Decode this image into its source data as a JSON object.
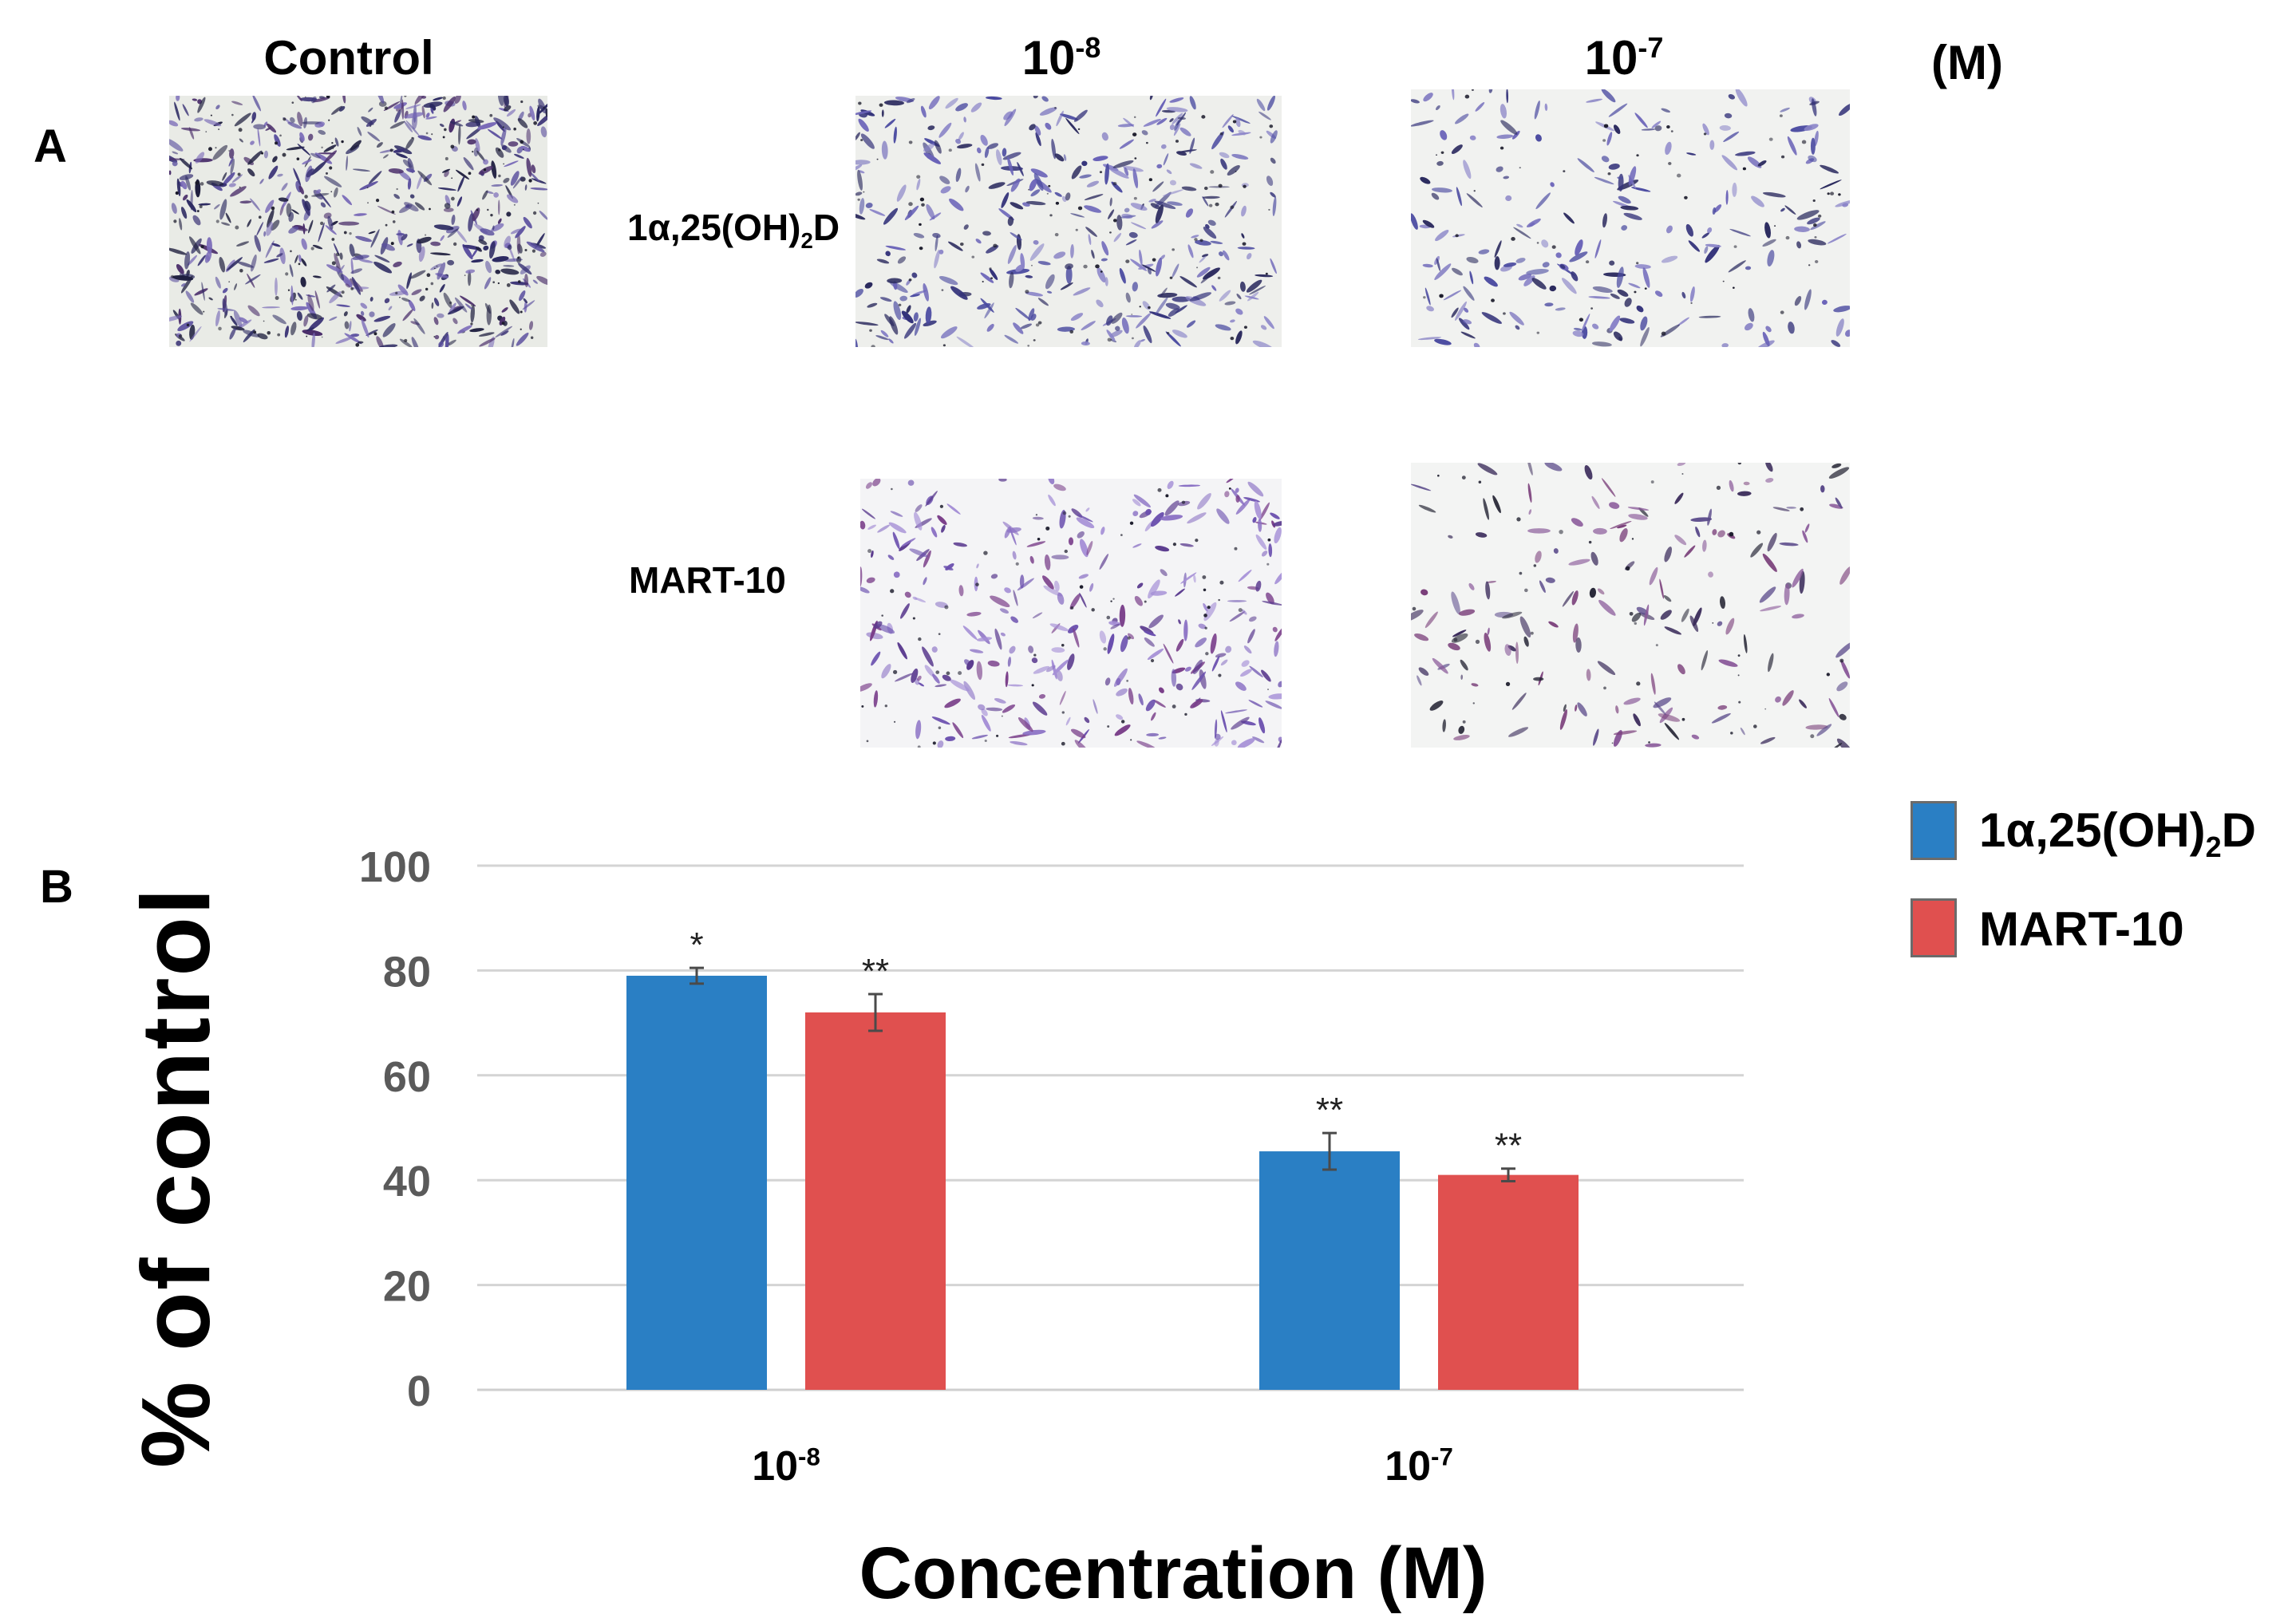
{
  "panel_a": {
    "letter": "A",
    "columns": [
      {
        "base": "Control",
        "exp": ""
      },
      {
        "base": "10",
        "exp": "-8"
      },
      {
        "base": "10",
        "exp": "-7"
      }
    ],
    "unit": "(M)",
    "rows": [
      {
        "label_base": "1α,25(OH)",
        "label_sub": "2",
        "label_tail": "D"
      },
      {
        "label_base": "MART-10",
        "label_sub": "",
        "label_tail": ""
      }
    ]
  },
  "panel_b": {
    "letter": "B"
  },
  "chart_data": {
    "type": "bar",
    "categories": [
      {
        "base": "10",
        "exp": "-8"
      },
      {
        "base": "10",
        "exp": "-7"
      }
    ],
    "series": [
      {
        "name_base": "1α,25(OH)",
        "name_sub": "2",
        "name_tail": "D",
        "color": "#2a7fc4",
        "values": [
          79,
          45.5
        ],
        "errors": [
          1.5,
          3.5
        ],
        "significance": [
          "*",
          "**"
        ]
      },
      {
        "name_base": "MART-10",
        "name_sub": "",
        "name_tail": "",
        "color": "#e0504f",
        "values": [
          72,
          41
        ],
        "errors": [
          3.5,
          1.2
        ],
        "significance": [
          "**",
          "**"
        ]
      }
    ],
    "yticks": [
      0,
      20,
      40,
      60,
      80,
      100
    ],
    "ylim": [
      0,
      100
    ],
    "xlabel": "Concentration (M)",
    "ylabel": "% of control",
    "grid": true,
    "legend_position": "top-right"
  }
}
